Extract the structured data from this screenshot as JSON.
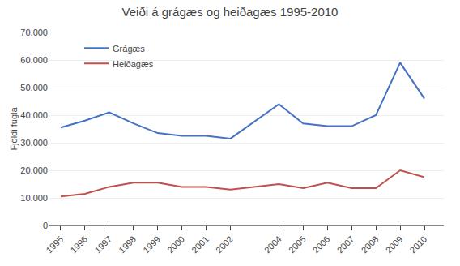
{
  "chart_data": {
    "type": "line",
    "title": "Veiði á grágæs og heiðagæs 1995-2010",
    "y_label": "Fjöldi fugla",
    "x": [
      1995,
      1996,
      1997,
      1998,
      1999,
      2000,
      2001,
      2002,
      2004,
      2005,
      2006,
      2007,
      2008,
      2009,
      2010
    ],
    "series": [
      {
        "name": "Grágæs",
        "color": "#4472C4",
        "values": [
          35500,
          38000,
          41000,
          37000,
          33500,
          32500,
          32500,
          31500,
          44000,
          37000,
          36000,
          36000,
          40000,
          59000,
          46000
        ]
      },
      {
        "name": "Heiðagæs",
        "color": "#C0504D",
        "values": [
          10500,
          11500,
          14000,
          15500,
          15500,
          14000,
          14000,
          13000,
          15000,
          13500,
          15500,
          13500,
          13500,
          20000,
          17500
        ]
      }
    ],
    "xlim": [
      1994.5,
      2010.8
    ],
    "xticks": [
      1995,
      1996,
      1997,
      1998,
      1999,
      2000,
      2001,
      2002,
      2004,
      2005,
      2006,
      2007,
      2008,
      2009,
      2010
    ],
    "ylim": [
      0,
      70000
    ],
    "yticks": [
      0,
      {
        "value": 10000,
        "label": "10.000"
      },
      {
        "value": 20000,
        "label": "20.000"
      },
      {
        "value": 30000,
        "label": "30.000"
      },
      {
        "value": 40000,
        "label": "40.000"
      },
      {
        "value": 50000,
        "label": "50.000"
      },
      {
        "value": 60000,
        "label": "60.000"
      },
      {
        "value": 70000,
        "label": "70.000"
      }
    ],
    "grid": true,
    "legend": "upper left"
  }
}
